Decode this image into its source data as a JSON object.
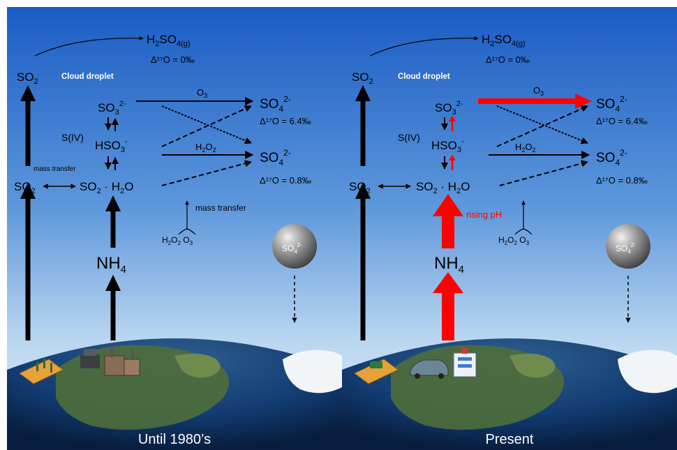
{
  "panels": [
    {
      "caption": "Until 1980’s",
      "h2so4_sub": "4(g)",
      "delta_gas": "Δ¹⁷O = 0‰",
      "so2": "SO",
      "cloud_droplet": "Cloud droplet",
      "s_iv": "S(IV)",
      "o3_label": "O",
      "h2o2_label": "H",
      "delta_o3_path": "Δ¹⁷O = 6.4‰",
      "delta_h2o2_path": "Δ¹⁷O = 0.8‰",
      "mass_transfer_left": "mass transfer",
      "mass_transfer_right": "mass transfer",
      "nh4": "NH",
      "rising_ph": ""
    },
    {
      "caption": "Present",
      "h2so4_sub": "4(g)",
      "delta_gas": "Δ¹⁷O = 0‰",
      "so2": "SO",
      "cloud_droplet": "Cloud droplet",
      "s_iv": "S(IV)",
      "o3_label": "O",
      "h2o2_label": "H",
      "delta_o3_path": "Δ¹⁷O = 6.4‰",
      "delta_h2o2_path": "Δ¹⁷O = 0.8‰",
      "mass_transfer_left": "",
      "mass_transfer_right": "",
      "nh4": "NH",
      "rising_ph": "rising pH"
    }
  ],
  "colors": {
    "sky_top": "#1d63c9",
    "sky_bottom": "#d3e6f6",
    "arrow": "#000000",
    "highlight": "#ff0000",
    "cloud_text": "#ffffff"
  }
}
